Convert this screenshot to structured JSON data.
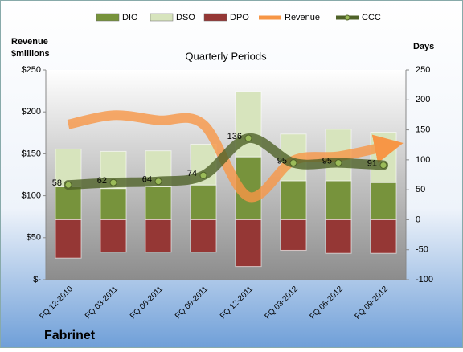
{
  "chart_data": {
    "type": "combo",
    "title": "Quarterly Periods",
    "footer": "Fabrinet",
    "y_label": "Revenue $millions",
    "y2_label": "Days",
    "categories": [
      "FQ 12-2010",
      "FQ 03-2011",
      "FQ 06-2011",
      "FQ 09-2011",
      "FQ 12-2011",
      "FQ 03-2012",
      "FQ 06-2012",
      "FQ 09-2012"
    ],
    "ylim": [
      0,
      250
    ],
    "yticks": [
      {
        "value": 0,
        "label": "$-"
      },
      {
        "value": 50,
        "label": "$50"
      },
      {
        "value": 100,
        "label": "$100"
      },
      {
        "value": 150,
        "label": "$150"
      },
      {
        "value": 200,
        "label": "$200"
      },
      {
        "value": 250,
        "label": "$250"
      }
    ],
    "y2lim": [
      -100,
      250
    ],
    "y2ticks": [
      -100,
      -50,
      0,
      50,
      100,
      150,
      200,
      250
    ],
    "legend": "top",
    "series": [
      {
        "name": "DIO",
        "kind": "bar",
        "axis": "y2",
        "color": "#77933c",
        "values": [
          55,
          52,
          55,
          58,
          105,
          65,
          65,
          62
        ]
      },
      {
        "name": "DSO",
        "kind": "bar",
        "axis": "y2",
        "color": "#d7e4bd",
        "values": [
          63,
          62,
          60,
          68,
          109,
          78,
          86,
          84
        ]
      },
      {
        "name": "DPO",
        "kind": "bar",
        "axis": "y2",
        "color": "#953735",
        "values": [
          -64,
          -54,
          -54,
          -54,
          -78,
          -51,
          -56,
          -56
        ]
      },
      {
        "name": "Revenue",
        "kind": "line",
        "color": "#f79646",
        "values": [
          185,
          196,
          190,
          185,
          99,
          142,
          147,
          158
        ]
      },
      {
        "name": "CCC",
        "kind": "line",
        "axis": "y2",
        "color": "#4f6228",
        "values": [
          58,
          62,
          64,
          74,
          136,
          95,
          95,
          91
        ]
      }
    ]
  }
}
